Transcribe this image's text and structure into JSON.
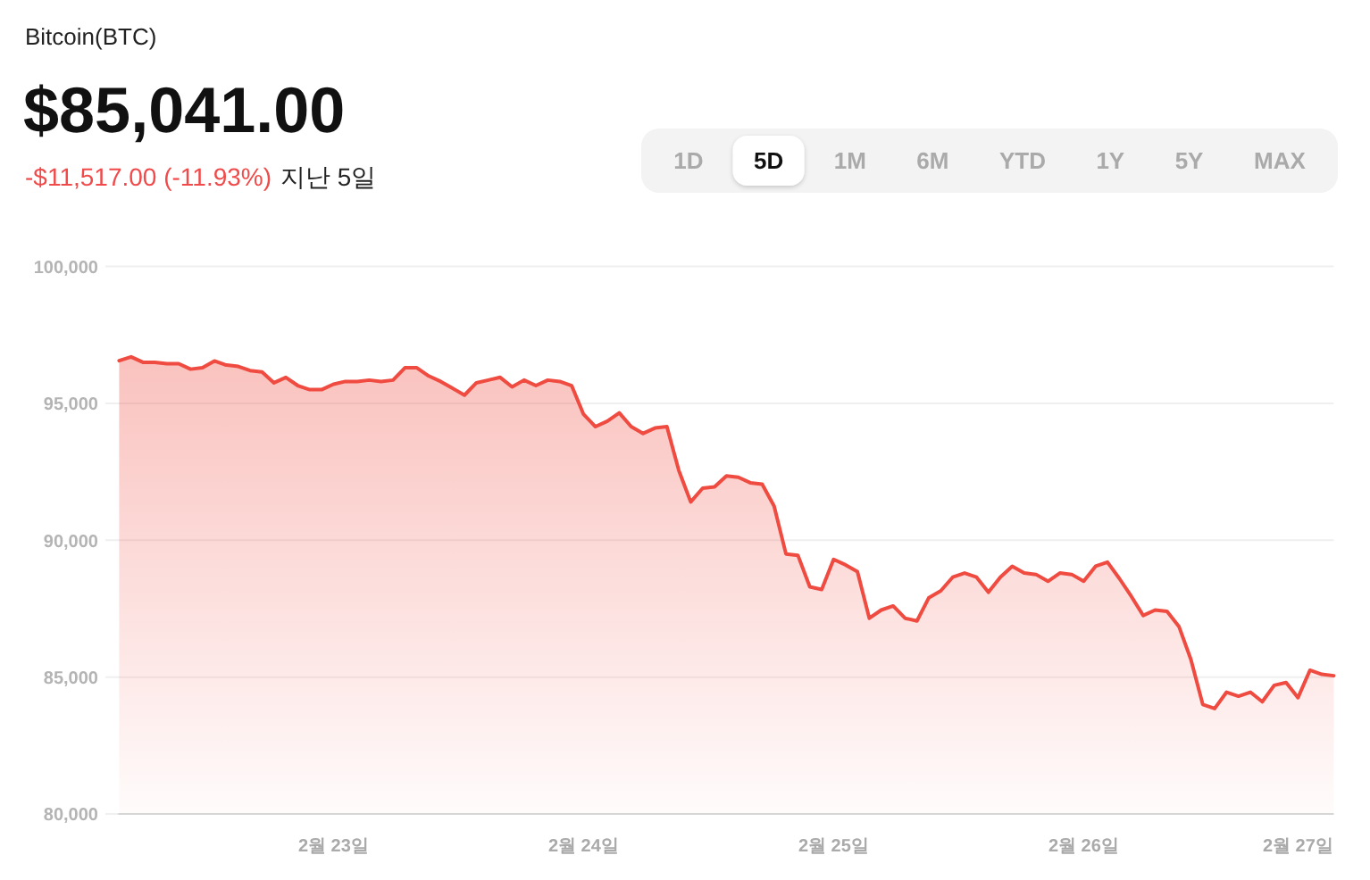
{
  "chart_data": {
    "type": "area",
    "title": "Bitcoin(BTC)",
    "subtitle": "$85,041.00",
    "annotations": [
      "-$11,517.00 (-11.93%)",
      "지난 5일",
      "1D",
      "5D",
      "1M",
      "6M",
      "YTD",
      "1Y",
      "5Y",
      "MAX"
    ],
    "categories": [
      null,
      null,
      null,
      null,
      null,
      null,
      null,
      null,
      null,
      null,
      null,
      null,
      null,
      null,
      null,
      null,
      null,
      null,
      "2월 23일",
      null,
      null,
      null,
      null,
      null,
      null,
      null,
      null,
      null,
      null,
      null,
      null,
      null,
      null,
      null,
      null,
      null,
      null,
      null,
      null,
      "2월 24일",
      null,
      null,
      null,
      null,
      null,
      null,
      null,
      null,
      null,
      null,
      null,
      null,
      null,
      null,
      null,
      null,
      null,
      null,
      null,
      null,
      "2월 25일",
      null,
      null,
      null,
      null,
      null,
      null,
      null,
      null,
      null,
      null,
      null,
      null,
      null,
      null,
      null,
      null,
      null,
      null,
      null,
      null,
      "2월 26일",
      null,
      null,
      null,
      null,
      null,
      null,
      null,
      null,
      null,
      null,
      null,
      null,
      null,
      null,
      null,
      null,
      null,
      "2월 27일",
      null,
      null,
      null
    ],
    "series": [
      {
        "color": "#ef4b40",
        "values": [
          96560,
          96700,
          96500,
          96500,
          96450,
          96450,
          96250,
          96300,
          96550,
          96400,
          96350,
          96200,
          96150,
          95750,
          95950,
          95650,
          95500,
          95500,
          95700,
          95800,
          95800,
          95850,
          95800,
          95850,
          96300,
          96300,
          96000,
          95800,
          95550,
          95300,
          95750,
          95850,
          95950,
          95600,
          95850,
          95650,
          95850,
          95800,
          95650,
          94600,
          94150,
          94350,
          94650,
          94150,
          93900,
          94100,
          94150,
          92550,
          91400,
          91900,
          91950,
          92350,
          92300,
          92100,
          92050,
          91250,
          89500,
          89450,
          88300,
          88200,
          89300,
          89100,
          88850,
          87150,
          87450,
          87600,
          87150,
          87050,
          87900,
          88150,
          88650,
          88800,
          88650,
          88100,
          88650,
          89050,
          88800,
          88750,
          88500,
          88800,
          88750,
          88500,
          89050,
          89200,
          88600,
          87950,
          87250,
          87450,
          87400,
          86850,
          85650,
          84000,
          83850,
          84450,
          84300,
          84450,
          84100,
          84700,
          84800,
          84250,
          85250,
          85100,
          85050
        ]
      }
    ],
    "ylim": [
      80000,
      100000
    ],
    "yticks": [
      {
        "value": 80000,
        "label": "80,000"
      },
      {
        "value": 85000,
        "label": "85,000"
      },
      {
        "value": 90000,
        "label": "90,000"
      },
      {
        "value": 95000,
        "label": "95,000"
      },
      {
        "value": 100000,
        "label": "100,000"
      }
    ],
    "grid": "y"
  }
}
